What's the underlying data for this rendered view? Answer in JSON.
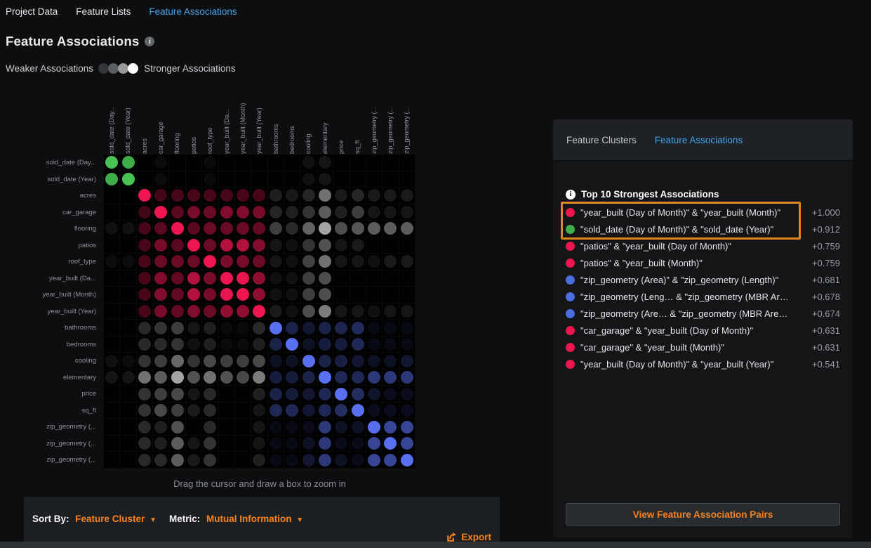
{
  "colors": {
    "accent_orange": "#f8821e",
    "link_blue": "#45a3e9",
    "dot_red": "#ed1750",
    "dot_green": "#3fae4c",
    "dot_blue": "#4a6de0",
    "dot_gray": "#cdcdcd"
  },
  "top_nav": {
    "items": [
      {
        "label": "Project Data",
        "active": false
      },
      {
        "label": "Feature Lists",
        "active": false
      },
      {
        "label": "Feature Associations",
        "active": true
      }
    ]
  },
  "header": {
    "title": "Feature Associations"
  },
  "legend": {
    "weaker_label": "Weaker Associations",
    "stronger_label": "Stronger Associations",
    "swatches": [
      "#333639",
      "#5c5f62",
      "#98999b",
      "#ffffff"
    ]
  },
  "chart_data": {
    "type": "heatmap",
    "features": [
      "sold_date (Day...",
      "sold_date (Year)",
      "acres",
      "car_garage",
      "flooring",
      "patios",
      "roof_type",
      "year_built (Da...",
      "year_built (Month)",
      "year_built (Year)",
      "bathrooms",
      "bedrooms",
      "cooling",
      "elementary",
      "price",
      "sq_ft",
      "zip_geometry (...",
      "zip_geometry (...",
      "zip_geometry (..."
    ],
    "cell_note": "token = cluster letter (g=green sold_date cluster, r=red year_built cluster, b=blue numeric cluster, k=gray cross-cluster) + association strength 0-1; 0 = no visible dot",
    "matrix": [
      [
        "g1",
        "g.88",
        "0",
        "k.06",
        "0",
        "0",
        "k.05",
        "0",
        "0",
        "0",
        "0",
        "0",
        "k.08",
        "k.1",
        "0",
        "0",
        "0",
        "0",
        "0"
      ],
      [
        "g.88",
        "g1",
        "0",
        "k.06",
        "0",
        "0",
        "k.05",
        "0",
        "0",
        "0",
        "0",
        "0",
        "k.08",
        "k.1",
        "0",
        "0",
        "0",
        "0",
        "0"
      ],
      [
        "0",
        "0",
        "r1",
        "r.28",
        "r.3",
        "r.3",
        "r.3",
        "r.3",
        "r.3",
        "r.3",
        "k.15",
        "k.12",
        "k.18",
        "k.55",
        "k.12",
        "k.18",
        "k.12",
        "k.12",
        "k.12"
      ],
      [
        "0",
        "0",
        "r.28",
        "r1",
        "r.38",
        "r.5",
        "r.45",
        "r.55",
        "r.55",
        "r.5",
        "k.18",
        "k.15",
        "k.25",
        "k.45",
        "k.15",
        "k.3",
        "k.1",
        "k.1",
        "k.1"
      ],
      [
        "k.08",
        "k.08",
        "r.3",
        "r.38",
        "r1",
        "r.38",
        "r.45",
        "r.45",
        "r.45",
        "r.42",
        "k.3",
        "k.2",
        "k.48",
        "k.8",
        "k.38",
        "k.42",
        "k.45",
        "k.45",
        "k.45"
      ],
      [
        "0",
        "0",
        "r.3",
        "r.5",
        "r.38",
        "r1",
        "r.45",
        "r.75",
        "r.75",
        "r.55",
        "k.1",
        "k.08",
        "k.25",
        "k.4",
        "k.1",
        "k.12",
        "0",
        "0",
        "0"
      ],
      [
        "k.06",
        "k.06",
        "r.3",
        "r.45",
        "r.45",
        "r.45",
        "r1",
        "r.5",
        "r.5",
        "r.45",
        "k.1",
        "k.08",
        "k.32",
        "k.55",
        "k.1",
        "k.1",
        "k.08",
        "k.12",
        "k.12"
      ],
      [
        "0",
        "0",
        "r.3",
        "r.55",
        "r.42",
        "r.75",
        "r.5",
        "r1",
        "r.98",
        "r.6",
        "k.08",
        "k.08",
        "k.3",
        "k.38",
        "0",
        "0",
        "0",
        "0",
        "0"
      ],
      [
        "0",
        "0",
        "r.3",
        "r.55",
        "r.42",
        "r.75",
        "r.5",
        "r.98",
        "r1",
        "r.6",
        "k.08",
        "k.08",
        "k.3",
        "k.38",
        "0",
        "0",
        "0",
        "0",
        "0"
      ],
      [
        "0",
        "0",
        "r.3",
        "r.5",
        "r.42",
        "r.55",
        "r.45",
        "r.6",
        "r.6",
        "r1",
        "k.12",
        "k.08",
        "k.38",
        "k.6",
        "k.1",
        "k.1",
        "k.08",
        "k.1",
        "k.1"
      ],
      [
        "0",
        "0",
        "k.2",
        "k.25",
        "k.3",
        "k.1",
        "k.15",
        "k.05",
        "k.05",
        "k.2",
        "b1",
        "b.3",
        "b.2",
        "b.3",
        "b.32",
        "b.38",
        "b.08",
        "b.08",
        "b.08"
      ],
      [
        "0",
        "0",
        "k.2",
        "k.2",
        "k.25",
        "k.08",
        "k.15",
        "k.05",
        "k.05",
        "k.15",
        "b.3",
        "b1",
        "b.15",
        "b.25",
        "b.25",
        "b.35",
        "b.08",
        "b.08",
        "b.08"
      ],
      [
        "k.08",
        "k.06",
        "k.25",
        "k.3",
        "k.5",
        "k.25",
        "k.35",
        "k.3",
        "k.3",
        "k.35",
        "b.15",
        "b.15",
        "b1",
        "b.3",
        "b.28",
        "b.2",
        "b.15",
        "b.15",
        "b.2"
      ],
      [
        "k.1",
        "k.1",
        "k.55",
        "k.45",
        "k.8",
        "k.4",
        "k.55",
        "k.4",
        "k.35",
        "k.6",
        "b.25",
        "b.25",
        "b.3",
        "b1",
        "b.35",
        "b.35",
        "b.5",
        "b.5",
        "b.5"
      ],
      [
        "0",
        "0",
        "k.25",
        "k.3",
        "k.35",
        "k.1",
        "k.2",
        "0",
        "0",
        "k.15",
        "b.3",
        "b.25",
        "b.2",
        "b.35",
        "b1",
        "b.4",
        "b.18",
        "b.12",
        "b.12"
      ],
      [
        "0",
        "0",
        "k.25",
        "k.35",
        "k.3",
        "k.12",
        "k.2",
        "0",
        "0",
        "k.1",
        "b.35",
        "b.35",
        "b.2",
        "b.35",
        "b.4",
        "b1",
        "b.12",
        "b.12",
        "b.12"
      ],
      [
        "0",
        "0",
        "k.2",
        "k.15",
        "k.4",
        "0",
        "k.2",
        "0",
        "0",
        "k.1",
        "b.08",
        "b.08",
        "b.1",
        "b.5",
        "b.15",
        "b.15",
        "b1",
        "b.62",
        "b.62"
      ],
      [
        "0",
        "0",
        "k.2",
        "k.15",
        "k.45",
        "k.1",
        "k.25",
        "0",
        "0",
        "k.1",
        "b.08",
        "b.08",
        "b.15",
        "b.5",
        "b.1",
        "b.1",
        "b.62",
        "b1",
        "b.62"
      ],
      [
        "0",
        "0",
        "k.2",
        "k.2",
        "k.45",
        "k.12",
        "k.25",
        "0",
        "0",
        "k.15",
        "b.08",
        "b.08",
        "b.2",
        "b.5",
        "b.15",
        "b.1",
        "b.62",
        "b.62",
        "b1"
      ]
    ],
    "caption": "Drag the cursor and draw a box to zoom in"
  },
  "controls": {
    "sort_by_label": "Sort By:",
    "sort_by_value": "Feature Cluster",
    "metric_label": "Metric:",
    "metric_value": "Mutual Information",
    "export_label": "Export"
  },
  "panel": {
    "tabs": [
      {
        "label": "Feature Clusters",
        "active": false
      },
      {
        "label": "Feature Associations",
        "active": true
      }
    ],
    "top10_title": "Top 10 Strongest Associations",
    "associations": [
      {
        "color": "red",
        "pair": "\"year_built (Day of Month)\" & \"year_built (Month)\"",
        "value": "+1.000",
        "highlighted": true
      },
      {
        "color": "green",
        "pair": "\"sold_date (Day of Month)\" & \"sold_date (Year)\"",
        "value": "+0.912",
        "highlighted": true
      },
      {
        "color": "red",
        "pair": "\"patios\" & \"year_built (Day of Month)\"",
        "value": "+0.759",
        "highlighted": false
      },
      {
        "color": "red",
        "pair": "\"patios\" & \"year_built (Month)\"",
        "value": "+0.759",
        "highlighted": false
      },
      {
        "color": "blue",
        "pair": "\"zip_geometry (Area)\" & \"zip_geometry (Length)\"",
        "value": "+0.681",
        "highlighted": false
      },
      {
        "color": "blue",
        "pair": "\"zip_geometry (Leng…  & \"zip_geometry (MBR Ar…",
        "value": "+0.678",
        "highlighted": false
      },
      {
        "color": "blue",
        "pair": "\"zip_geometry (Are…  & \"zip_geometry (MBR Are…",
        "value": "+0.674",
        "highlighted": false
      },
      {
        "color": "red",
        "pair": "\"car_garage\" & \"year_built (Day of Month)\"",
        "value": "+0.631",
        "highlighted": false
      },
      {
        "color": "red",
        "pair": "\"car_garage\" & \"year_built (Month)\"",
        "value": "+0.631",
        "highlighted": false
      },
      {
        "color": "red",
        "pair": "\"year_built (Day of Month)\" & \"year_built (Year)\"",
        "value": "+0.541",
        "highlighted": false
      }
    ],
    "button_label": "View Feature Association Pairs"
  }
}
